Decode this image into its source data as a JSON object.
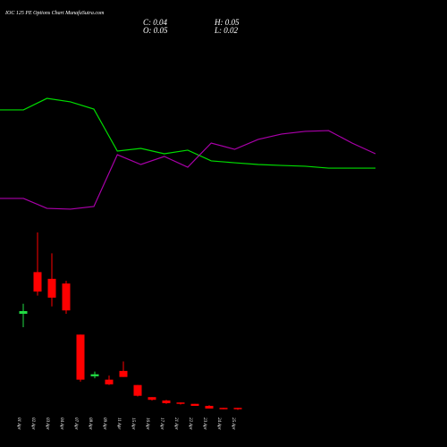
{
  "chart_data": {
    "type": "candlestick",
    "title": "IOC 125 PE Options Chart MunafaSutra.com",
    "ohlc_labels": [
      "C: 0.04",
      "H: 0.05",
      "O: 0.05",
      "L: 0.02"
    ],
    "categories": [
      "01 Apr",
      "02 Apr",
      "03 Apr",
      "04 Apr",
      "07 Apr",
      "08 Apr",
      "09 Apr",
      "11 Apr",
      "15 Apr",
      "16 Apr",
      "17 Apr",
      "21 Apr",
      "22 Apr",
      "23 Apr",
      "24 Apr",
      "25 Apr"
    ],
    "open": [
      1.45,
      2.07,
      1.97,
      1.9,
      1.14,
      0.52,
      0.47,
      0.6,
      0.39,
      0.21,
      0.16,
      0.13,
      0.11,
      0.08,
      0.05,
      0.05
    ],
    "high": [
      1.6,
      2.66,
      2.35,
      1.94,
      1.14,
      0.59,
      0.53,
      0.74,
      0.39,
      0.21,
      0.17,
      0.13,
      0.11,
      0.09,
      0.05,
      0.05
    ],
    "low": [
      1.25,
      1.72,
      1.56,
      1.45,
      0.44,
      0.49,
      0.39,
      0.51,
      0.22,
      0.16,
      0.11,
      0.1,
      0.08,
      0.04,
      0.03,
      0.02
    ],
    "close": [
      1.49,
      1.78,
      1.69,
      1.5,
      0.47,
      0.55,
      0.4,
      0.51,
      0.23,
      0.17,
      0.12,
      0.11,
      0.08,
      0.04,
      0.03,
      0.04
    ],
    "up_color": "#22dd44",
    "down_color": "#ff0000",
    "ylim": [
      0,
      2.7
    ],
    "lines": {
      "x": [
        0,
        1,
        2,
        3,
        4,
        5,
        6,
        7,
        8,
        9,
        10,
        11,
        12,
        13,
        14,
        15,
        16
      ],
      "xlim": [
        0,
        16
      ],
      "ylim": [
        0,
        100
      ],
      "series": [
        {
          "color": "#00dd00",
          "values": [
            84.7,
            84.7,
            93.3,
            90.7,
            85.3,
            54,
            56,
            52,
            54.7,
            46.7,
            45.3,
            44,
            43.3,
            42.7,
            41.3,
            41.3,
            41.3
          ]
        },
        {
          "color": "#aa00aa",
          "values": [
            18.7,
            18.7,
            11.3,
            10.7,
            12.7,
            51.3,
            44,
            50,
            42,
            60,
            55.3,
            62.7,
            66.7,
            68.7,
            69.3,
            60,
            52
          ]
        }
      ]
    }
  }
}
